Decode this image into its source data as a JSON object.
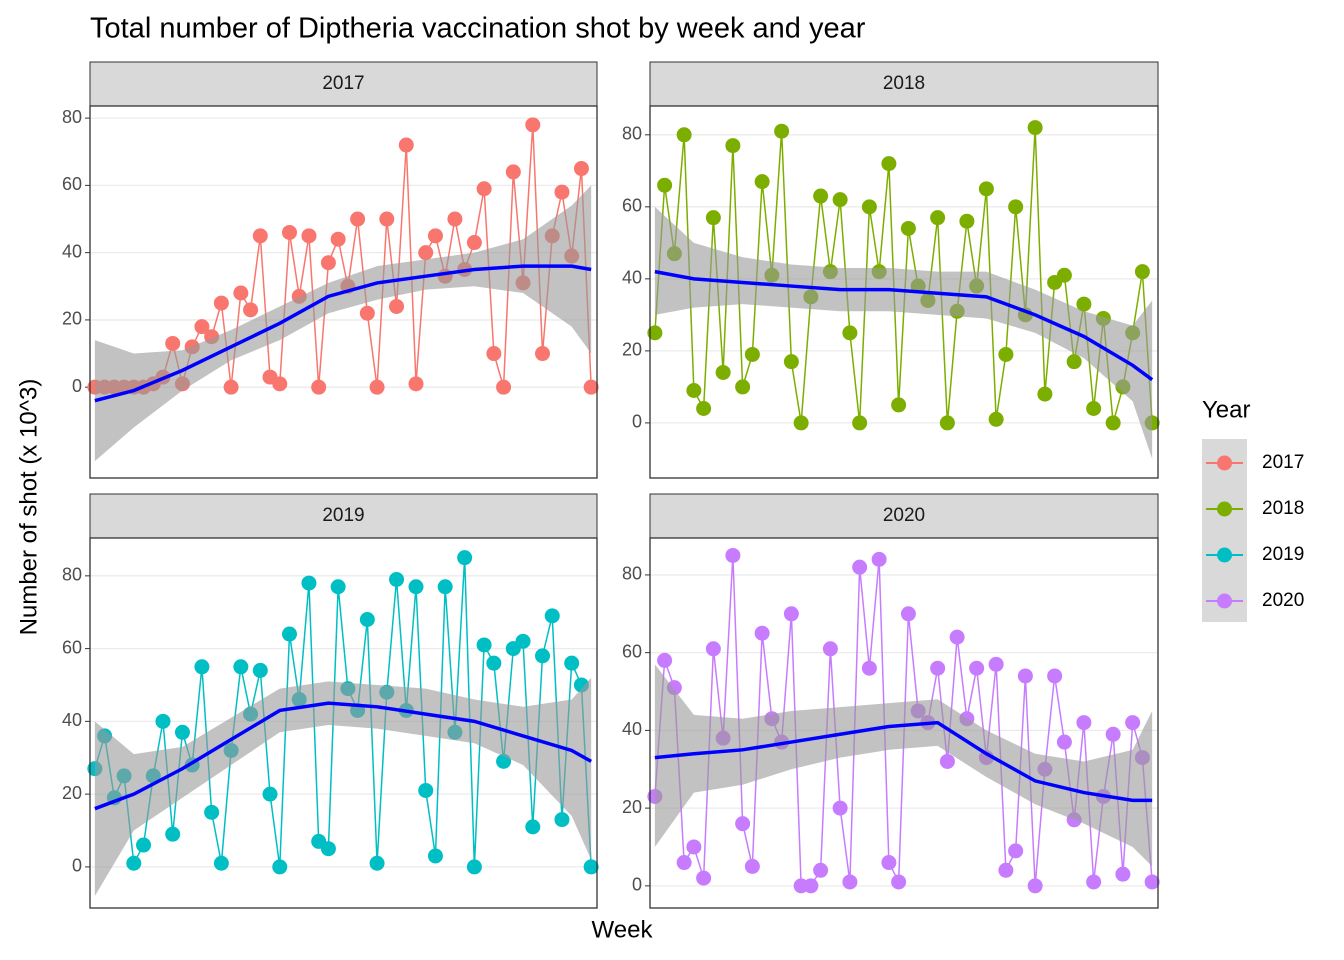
{
  "title": "Total number of Diptheria vaccination shot by week and year",
  "x_label": "Week",
  "y_label": "Number of shot (x 10^3)",
  "legend_title": "Year",
  "chart_data": [
    {
      "type": "line",
      "title": "2017",
      "xlim": [
        0.5,
        52.6
      ],
      "ylim": [
        -27,
        83.6
      ],
      "yticks": [
        0,
        20,
        40,
        60,
        80
      ],
      "grid": true,
      "x": [
        1,
        2,
        3,
        4,
        5,
        6,
        7,
        8,
        9,
        10,
        11,
        12,
        13,
        14,
        15,
        16,
        17,
        18,
        19,
        20,
        21,
        22,
        23,
        24,
        25,
        26,
        27,
        28,
        29,
        30,
        31,
        32,
        33,
        34,
        35,
        36,
        37,
        38,
        39,
        40,
        41,
        42,
        43,
        44,
        45,
        46,
        47,
        48,
        49,
        50,
        51,
        52
      ],
      "series": [
        {
          "name": "2017",
          "color": "#F8766D",
          "values": [
            0,
            0,
            0,
            0,
            0,
            0,
            1,
            3,
            13,
            1,
            12,
            18,
            15,
            25,
            0,
            28,
            23,
            45,
            3,
            1,
            46,
            27,
            45,
            0,
            37,
            44,
            30,
            50,
            22,
            0,
            50,
            24,
            72,
            1,
            40,
            45,
            33,
            50,
            35,
            43,
            59,
            10,
            0,
            64,
            31,
            78,
            10,
            45,
            58,
            39,
            65,
            0
          ]
        }
      ],
      "trend": {
        "color": "#0000FF",
        "x": [
          1,
          5,
          10,
          15,
          20,
          25,
          30,
          35,
          40,
          45,
          50,
          52
        ],
        "values": [
          -4,
          -1,
          5,
          12,
          19,
          27,
          31,
          33,
          35,
          36,
          36,
          35
        ],
        "lower": [
          -22,
          -12,
          -1,
          8,
          14,
          22,
          26,
          29,
          30,
          28,
          18,
          10
        ],
        "upper": [
          14,
          10,
          11,
          17,
          24,
          31,
          36,
          38,
          40,
          44,
          54,
          60
        ]
      }
    },
    {
      "type": "line",
      "title": "2018",
      "xlim": [
        0.5,
        52.6
      ],
      "ylim": [
        -15.3,
        88
      ],
      "yticks": [
        0,
        20,
        40,
        60,
        80
      ],
      "grid": true,
      "x": [
        1,
        2,
        3,
        4,
        5,
        6,
        7,
        8,
        9,
        10,
        11,
        12,
        13,
        14,
        15,
        16,
        17,
        18,
        19,
        20,
        21,
        22,
        23,
        24,
        25,
        26,
        27,
        28,
        29,
        30,
        31,
        32,
        33,
        34,
        35,
        36,
        37,
        38,
        39,
        40,
        41,
        42,
        43,
        44,
        45,
        46,
        47,
        48,
        49,
        50,
        51,
        52
      ],
      "series": [
        {
          "name": "2018",
          "color": "#7CAE00",
          "values": [
            25,
            66,
            47,
            80,
            9,
            4,
            57,
            14,
            77,
            10,
            19,
            67,
            41,
            81,
            17,
            0,
            35,
            63,
            42,
            62,
            25,
            0,
            60,
            42,
            72,
            5,
            54,
            38,
            34,
            57,
            0,
            31,
            56,
            38,
            65,
            1,
            19,
            60,
            30,
            82,
            8,
            39,
            41,
            17,
            33,
            4,
            29,
            0,
            10,
            25,
            42,
            0
          ]
        }
      ],
      "trend": {
        "color": "#0000FF",
        "x": [
          1,
          5,
          10,
          15,
          20,
          25,
          30,
          35,
          40,
          45,
          50,
          52
        ],
        "values": [
          42,
          40,
          39,
          38,
          37,
          37,
          36,
          35,
          30,
          24,
          16,
          12
        ],
        "lower": [
          30,
          32,
          33,
          32,
          31,
          31,
          30,
          29,
          25,
          18,
          6,
          -10
        ],
        "upper": [
          60,
          50,
          46,
          44,
          43,
          43,
          42,
          42,
          37,
          31,
          27,
          34
        ]
      }
    },
    {
      "type": "line",
      "title": "2019",
      "xlim": [
        0.5,
        52.6
      ],
      "ylim": [
        -11.3,
        90.4
      ],
      "yticks": [
        0,
        20,
        40,
        60,
        80
      ],
      "grid": true,
      "x": [
        1,
        2,
        3,
        4,
        5,
        6,
        7,
        8,
        9,
        10,
        11,
        12,
        13,
        14,
        15,
        16,
        17,
        18,
        19,
        20,
        21,
        22,
        23,
        24,
        25,
        26,
        27,
        28,
        29,
        30,
        31,
        32,
        33,
        34,
        35,
        36,
        37,
        38,
        39,
        40,
        41,
        42,
        43,
        44,
        45,
        46,
        47,
        48,
        49,
        50,
        51,
        52
      ],
      "series": [
        {
          "name": "2019",
          "color": "#00BFC4",
          "values": [
            27,
            36,
            19,
            25,
            1,
            6,
            25,
            40,
            9,
            37,
            28,
            55,
            15,
            1,
            32,
            55,
            42,
            54,
            20,
            0,
            64,
            46,
            78,
            7,
            5,
            77,
            49,
            43,
            68,
            1,
            48,
            79,
            43,
            77,
            21,
            3,
            77,
            37,
            85,
            0,
            61,
            56,
            29,
            60,
            62,
            11,
            58,
            69,
            13,
            56,
            50,
            0
          ]
        }
      ],
      "trend": {
        "color": "#0000FF",
        "x": [
          1,
          5,
          10,
          15,
          20,
          25,
          30,
          35,
          40,
          45,
          50,
          52
        ],
        "values": [
          16,
          20,
          27,
          35,
          43,
          45,
          44,
          42,
          40,
          36,
          32,
          29
        ],
        "lower": [
          -8,
          10,
          19,
          28,
          37,
          39,
          38,
          36,
          34,
          28,
          14,
          2
        ],
        "upper": [
          40,
          31,
          33,
          41,
          49,
          51,
          50,
          49,
          46,
          44,
          46,
          52
        ]
      }
    },
    {
      "type": "line",
      "title": "2020",
      "xlim": [
        0.5,
        52.6
      ],
      "ylim": [
        -5.7,
        89.5
      ],
      "yticks": [
        0,
        20,
        40,
        60,
        80
      ],
      "grid": true,
      "x": [
        1,
        2,
        3,
        4,
        5,
        6,
        7,
        8,
        9,
        10,
        11,
        12,
        13,
        14,
        15,
        16,
        17,
        18,
        19,
        20,
        21,
        22,
        23,
        24,
        25,
        26,
        27,
        28,
        29,
        30,
        31,
        32,
        33,
        34,
        35,
        36,
        37,
        38,
        39,
        40,
        41,
        42,
        43,
        44,
        45,
        46,
        47,
        48,
        49,
        50,
        51,
        52
      ],
      "series": [
        {
          "name": "2020",
          "color": "#C77CFF",
          "values": [
            23,
            58,
            51,
            6,
            10,
            2,
            61,
            38,
            85,
            16,
            5,
            65,
            43,
            37,
            70,
            0,
            0,
            4,
            61,
            20,
            1,
            82,
            56,
            84,
            6,
            1,
            70,
            45,
            42,
            56,
            32,
            64,
            43,
            56,
            33,
            57,
            4,
            9,
            54,
            0,
            30,
            54,
            37,
            17,
            42,
            1,
            23,
            39,
            3,
            42,
            33,
            1
          ]
        }
      ],
      "trend": {
        "color": "#0000FF",
        "x": [
          1,
          5,
          10,
          15,
          20,
          25,
          30,
          35,
          40,
          45,
          50,
          52
        ],
        "values": [
          33,
          34,
          35,
          37,
          39,
          41,
          42,
          34,
          27,
          24,
          22,
          22
        ],
        "lower": [
          10,
          24,
          26,
          30,
          33,
          35,
          36,
          28,
          21,
          16,
          10,
          5
        ],
        "upper": [
          57,
          44,
          43,
          45,
          46,
          47,
          48,
          40,
          34,
          32,
          35,
          45
        ]
      }
    }
  ]
}
